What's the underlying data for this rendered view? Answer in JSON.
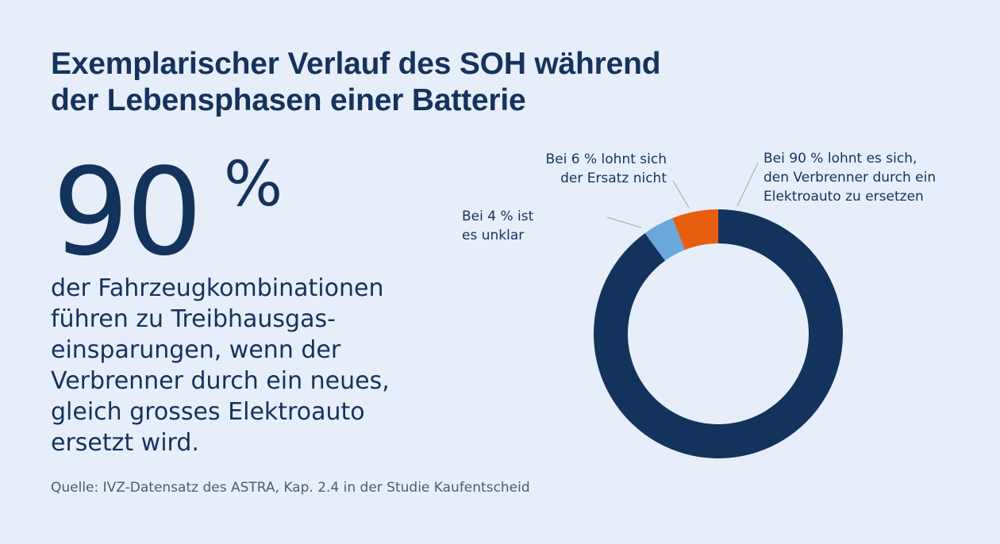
{
  "title": {
    "line1": "Exemplarischer Verlauf des SOH während",
    "line2": "der Lebensphasen einer Batterie"
  },
  "highlight": {
    "number": "90",
    "unit": "%",
    "lines": [
      "der Fahrzeugkombinationen",
      "führen zu Treibhausgas-",
      "einsparungen, wenn der",
      "Verbrenner durch ein neues,",
      "gleich grosses Elektroauto",
      "ersetzt wird."
    ]
  },
  "source": "Quelle: IVZ-Datensatz des ASTRA, Kap. 2.4 in der Studie Kaufentscheid",
  "colors": {
    "background": "#e6eef9",
    "text": "#14335c",
    "source_text": "#4b5d74",
    "leader_line": "#9aa8bb"
  },
  "chart_data": {
    "type": "pie",
    "variant": "donut",
    "start_angle_deg": 0,
    "direction": "clockwise",
    "slices": [
      {
        "value": 90,
        "color": "#14335c",
        "label_lines": [
          "Bei 90 % lohnt es sich,",
          "den Verbrenner durch ein",
          "Elektroauto zu ersetzen"
        ]
      },
      {
        "value": 4,
        "color": "#6aa8dc",
        "label_lines": [
          "Bei 4 % ist",
          "es unklar"
        ]
      },
      {
        "value": 6,
        "color": "#e85e10",
        "label_lines": [
          "Bei 6 % lohnt sich",
          "der Ersatz nicht"
        ]
      }
    ]
  }
}
